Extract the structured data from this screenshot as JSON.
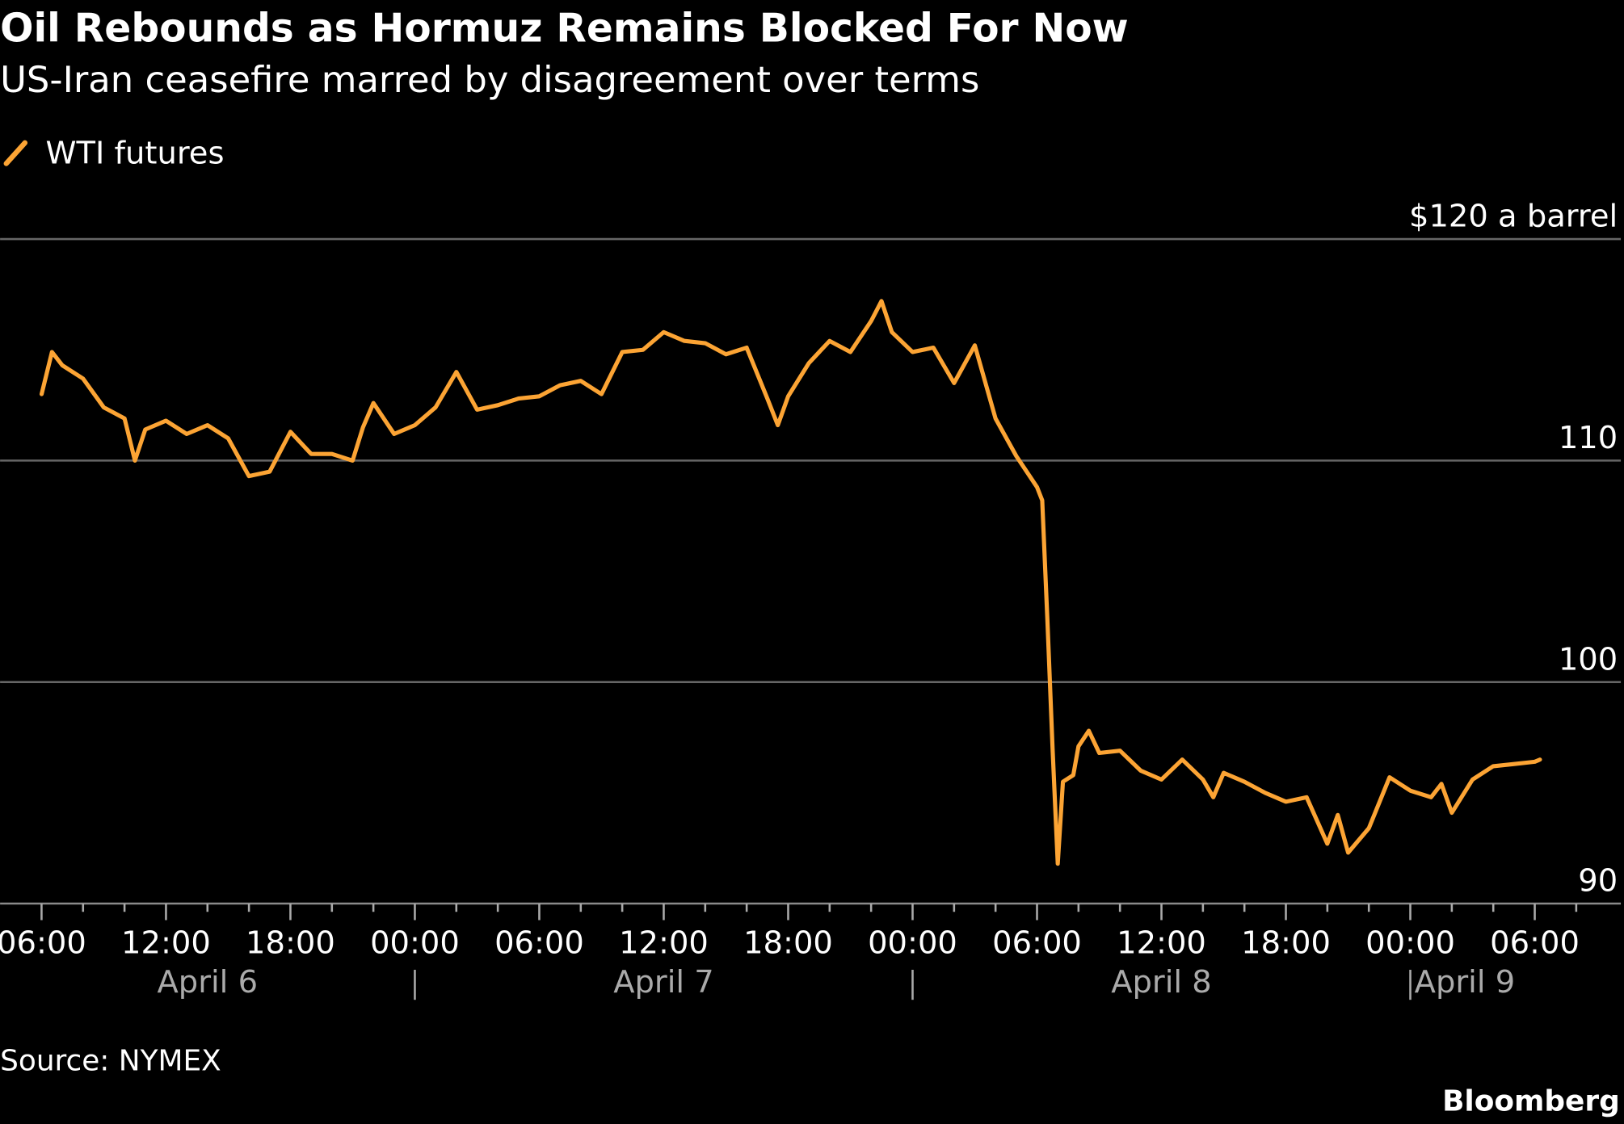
{
  "chart_data": {
    "type": "line",
    "title": "Oil Rebounds as Hormuz Remains Blocked For Now",
    "subtitle": "US-Iran ceasefire marred by disagreement over terms",
    "source": "Source: NYMEX",
    "brand": "Bloomberg",
    "x": [
      "April 6 06:00",
      "April 6 06:30",
      "April 6 07:00",
      "April 6 08:00",
      "April 6 09:00",
      "April 6 10:00",
      "April 6 10:30",
      "April 6 11:00",
      "April 6 12:00",
      "April 6 13:00",
      "April 6 14:00",
      "April 6 15:00",
      "April 6 16:00",
      "April 6 17:00",
      "April 6 18:00",
      "April 6 19:00",
      "April 6 20:00",
      "April 6 21:00",
      "April 6 21:30",
      "April 6 22:00",
      "April 6 23:00",
      "April 7 00:00",
      "April 7 01:00",
      "April 7 02:00",
      "April 7 03:00",
      "April 7 04:00",
      "April 7 05:00",
      "April 7 06:00",
      "April 7 07:00",
      "April 7 08:00",
      "April 7 09:00",
      "April 7 10:00",
      "April 7 11:00",
      "April 7 12:00",
      "April 7 13:00",
      "April 7 14:00",
      "April 7 15:00",
      "April 7 16:00",
      "April 7 17:00",
      "April 7 17:30",
      "April 7 18:00",
      "April 7 19:00",
      "April 7 20:00",
      "April 7 21:00",
      "April 7 22:00",
      "April 7 22:30",
      "April 7 23:00",
      "April 8 00:00",
      "April 8 01:00",
      "April 8 02:00",
      "April 8 03:00",
      "April 8 04:00",
      "April 8 05:00",
      "April 8 06:00",
      "April 8 06:15",
      "April 8 06:30",
      "April 8 06:45",
      "April 8 07:00",
      "April 8 07:15",
      "April 8 07:45",
      "April 8 08:00",
      "April 8 08:30",
      "April 8 09:00",
      "April 8 10:00",
      "April 8 11:00",
      "April 8 12:00",
      "April 8 13:00",
      "April 8 14:00",
      "April 8 14:30",
      "April 8 15:00",
      "April 8 16:00",
      "April 8 17:00",
      "April 8 18:00",
      "April 8 19:00",
      "April 8 20:00",
      "April 8 20:30",
      "April 8 21:00",
      "April 8 22:00",
      "April 8 23:00",
      "April 9 00:00",
      "April 9 01:00",
      "April 9 01:30",
      "April 9 02:00",
      "April 9 03:00",
      "April 9 04:00",
      "April 9 05:00",
      "April 9 06:00",
      "April 9 06:15"
    ],
    "series": [
      {
        "name": "WTI futures",
        "color": "#fca434",
        "values": [
          113.0,
          114.9,
          114.3,
          113.7,
          112.4,
          111.9,
          110.0,
          111.4,
          111.8,
          111.2,
          111.6,
          111.0,
          109.3,
          109.5,
          111.3,
          110.3,
          110.3,
          110.0,
          111.5,
          112.6,
          111.2,
          111.6,
          112.4,
          114.0,
          112.3,
          112.5,
          112.8,
          112.9,
          113.4,
          113.6,
          113.0,
          114.9,
          115.0,
          115.8,
          115.4,
          115.3,
          114.8,
          115.1,
          112.8,
          111.6,
          112.9,
          114.4,
          115.4,
          114.9,
          116.3,
          117.2,
          115.8,
          114.9,
          115.1,
          113.5,
          115.2,
          111.9,
          110.2,
          108.8,
          108.2,
          102.8,
          97.0,
          91.8,
          95.5,
          95.8,
          97.1,
          97.8,
          96.8,
          96.9,
          96.0,
          95.6,
          96.5,
          95.6,
          94.8,
          95.9,
          95.5,
          95.0,
          94.6,
          94.8,
          92.7,
          94.0,
          92.3,
          93.4,
          95.7,
          95.1,
          94.8,
          95.4,
          94.1,
          95.6,
          96.2,
          96.3,
          96.4,
          96.5
        ]
      }
    ],
    "xlim": [
      "April 6 04:00",
      "April 9 10:00"
    ],
    "xticks": [
      {
        "value": "April 6 06:00",
        "label": "06:00"
      },
      {
        "value": "April 6 12:00",
        "label": "12:00"
      },
      {
        "value": "April 6 18:00",
        "label": "18:00"
      },
      {
        "value": "April 7 00:00",
        "label": "00:00"
      },
      {
        "value": "April 7 06:00",
        "label": "06:00"
      },
      {
        "value": "April 7 12:00",
        "label": "12:00"
      },
      {
        "value": "April 7 18:00",
        "label": "18:00"
      },
      {
        "value": "April 8 00:00",
        "label": "00:00"
      },
      {
        "value": "April 8 06:00",
        "label": "06:00"
      },
      {
        "value": "April 8 12:00",
        "label": "12:00"
      },
      {
        "value": "April 8 18:00",
        "label": "18:00"
      },
      {
        "value": "April 9 00:00",
        "label": "00:00"
      },
      {
        "value": "April 9 06:00",
        "label": "06:00"
      }
    ],
    "xminorticks": [
      "April 6 08:00",
      "April 6 10:00",
      "April 6 14:00",
      "April 6 16:00",
      "April 6 20:00",
      "April 6 22:00",
      "April 7 02:00",
      "April 7 04:00",
      "April 7 08:00",
      "April 7 10:00",
      "April 7 14:00",
      "April 7 16:00",
      "April 7 20:00",
      "April 7 22:00",
      "April 8 02:00",
      "April 8 04:00",
      "April 8 08:00",
      "April 8 10:00",
      "April 8 14:00",
      "April 8 16:00",
      "April 8 20:00",
      "April 8 22:00",
      "April 9 02:00",
      "April 9 04:00",
      "April 9 08:00"
    ],
    "date_labels": [
      "April 6",
      "April 7",
      "April 8",
      "April 9"
    ],
    "ylim": [
      90,
      120
    ],
    "yticks": [
      90,
      100,
      110,
      {
        "value": 120,
        "label": "$120 a barrel"
      }
    ],
    "grid": true
  }
}
